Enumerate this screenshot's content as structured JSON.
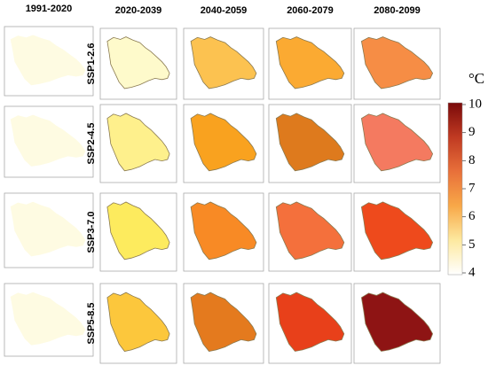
{
  "baseline": {
    "title": "1991-2020",
    "color": "#fefbe2"
  },
  "columns": [
    "2020-2039",
    "2040-2059",
    "2060-2079",
    "2080-2099"
  ],
  "rows": [
    {
      "label": "SSP1-2.6",
      "colors": [
        "#fefacb",
        "#fcc250",
        "#fbaa32",
        "#f68d45"
      ]
    },
    {
      "label": "SSP2-4.5",
      "colors": [
        "#fef08c",
        "#f9a21f",
        "#de7a1d",
        "#f47a60"
      ]
    },
    {
      "label": "SSP3-7.0",
      "colors": [
        "#fdeb5e",
        "#f88a25",
        "#f4703c",
        "#ee4a1c"
      ]
    },
    {
      "label": "SSP5-8.5",
      "colors": [
        "#fcc73c",
        "#e47a1e",
        "#e8401a",
        "#8e1414"
      ]
    }
  ],
  "colorbar": {
    "unit": "°C",
    "ylim": [
      4,
      10
    ],
    "ticks": [
      4,
      5,
      6,
      7,
      8,
      9,
      10
    ]
  }
}
